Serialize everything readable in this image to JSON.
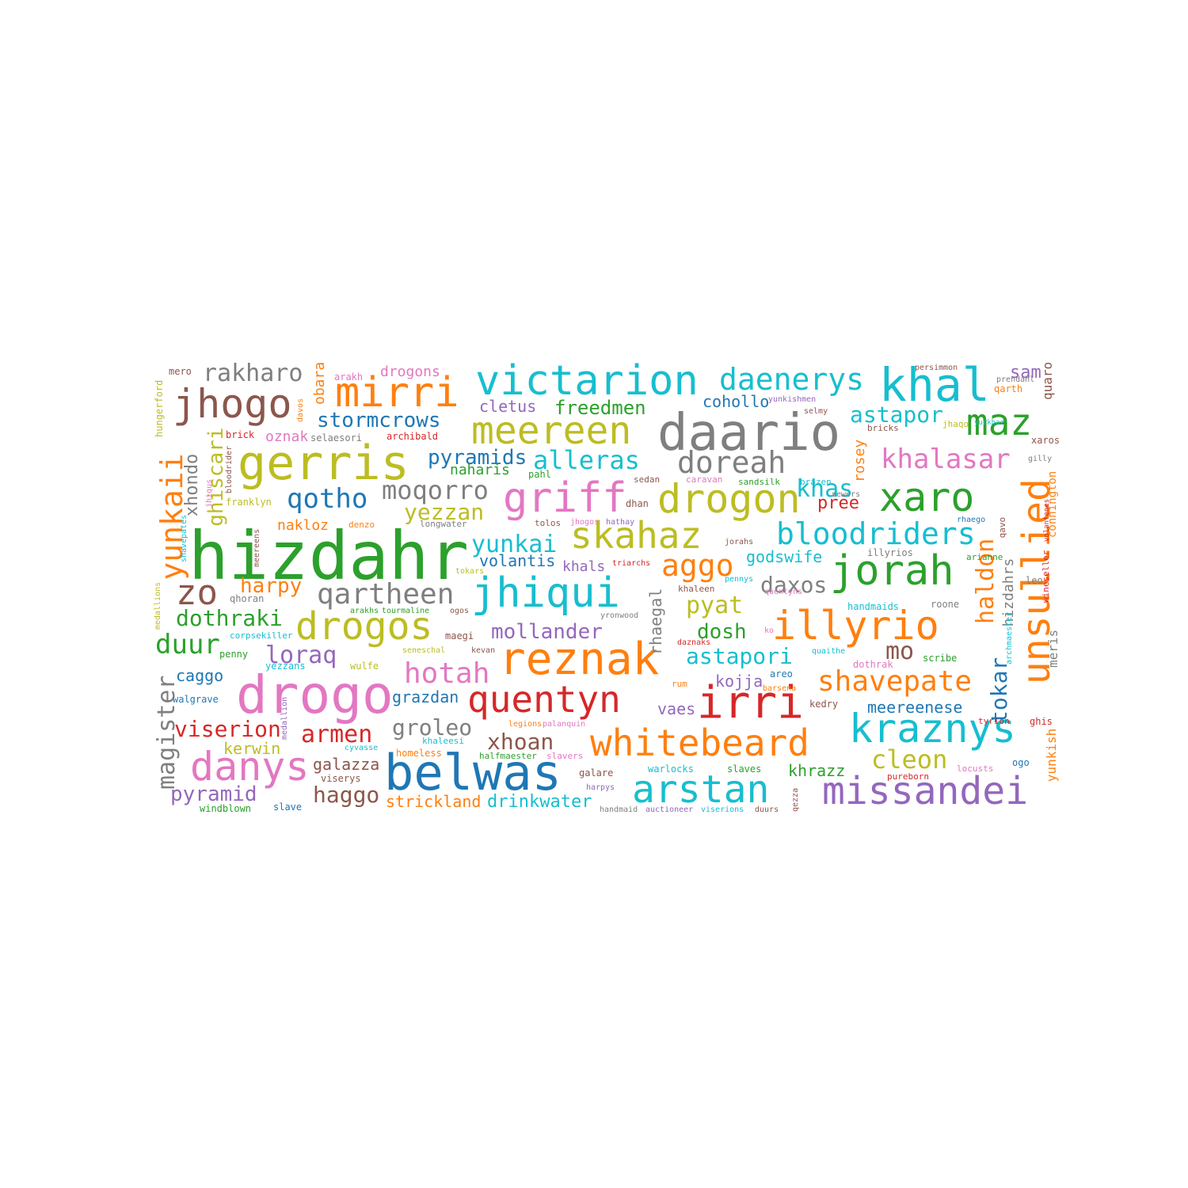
{
  "word_cloud": {
    "palette": {
      "blue": "#1f77b4",
      "orange": "#ff7f0e",
      "green": "#2ca02c",
      "red": "#d62728",
      "purple": "#9467bd",
      "brown": "#8c564b",
      "pink": "#e377c2",
      "gray": "#7f7f7f",
      "olive": "#bcbd22",
      "cyan": "#17becf"
    },
    "words": [
      {
        "text": "hizdahr",
        "color": "green"
      },
      {
        "text": "daario",
        "color": "gray"
      },
      {
        "text": "drogo",
        "color": "pink"
      },
      {
        "text": "belwas",
        "color": "blue"
      },
      {
        "text": "gerris",
        "color": "olive"
      },
      {
        "text": "victarion",
        "color": "cyan"
      },
      {
        "text": "meereen",
        "color": "olive"
      },
      {
        "text": "griff",
        "color": "pink"
      },
      {
        "text": "drogon",
        "color": "olive"
      },
      {
        "text": "reznak",
        "color": "orange"
      },
      {
        "text": "jhiqui",
        "color": "cyan"
      },
      {
        "text": "khal",
        "color": "cyan"
      },
      {
        "text": "unsullied",
        "color": "orange"
      },
      {
        "text": "jorah",
        "color": "green"
      },
      {
        "text": "illyrio",
        "color": "orange"
      },
      {
        "text": "quentyn",
        "color": "red"
      },
      {
        "text": "irri",
        "color": "red"
      },
      {
        "text": "whitebeard",
        "color": "orange"
      },
      {
        "text": "arstan",
        "color": "cyan"
      },
      {
        "text": "missandei",
        "color": "purple"
      },
      {
        "text": "kraznys",
        "color": "cyan"
      },
      {
        "text": "drogos",
        "color": "olive"
      },
      {
        "text": "danys",
        "color": "pink"
      },
      {
        "text": "xaro",
        "color": "green"
      },
      {
        "text": "skahaz",
        "color": "olive"
      },
      {
        "text": "mirri",
        "color": "orange"
      },
      {
        "text": "jhogo",
        "color": "brown"
      },
      {
        "text": "maz",
        "color": "green"
      },
      {
        "text": "daenerys",
        "color": "cyan"
      },
      {
        "text": "doreah",
        "color": "gray"
      },
      {
        "text": "zo",
        "color": "brown"
      },
      {
        "text": "bloodriders",
        "color": "cyan"
      },
      {
        "text": "yunkaii",
        "color": "orange"
      },
      {
        "text": "qartheen",
        "color": "gray"
      },
      {
        "text": "khalasar",
        "color": "pink"
      },
      {
        "text": "shavepate",
        "color": "orange"
      },
      {
        "text": "hotah",
        "color": "pink"
      },
      {
        "text": "qotho",
        "color": "blue"
      },
      {
        "text": "aggo",
        "color": "orange"
      },
      {
        "text": "rakharo",
        "color": "gray"
      },
      {
        "text": "alleras",
        "color": "cyan"
      },
      {
        "text": "moqorro",
        "color": "gray"
      },
      {
        "text": "magister",
        "color": "gray"
      },
      {
        "text": "yunkai",
        "color": "cyan"
      },
      {
        "text": "duur",
        "color": "green"
      },
      {
        "text": "astapor",
        "color": "cyan"
      },
      {
        "text": "astapori",
        "color": "cyan"
      },
      {
        "text": "pyat",
        "color": "olive"
      },
      {
        "text": "dothraki",
        "color": "green"
      },
      {
        "text": "ghiscari",
        "color": "olive"
      },
      {
        "text": "stormcrows",
        "color": "blue"
      },
      {
        "text": "pyramids",
        "color": "blue"
      },
      {
        "text": "mollander",
        "color": "purple"
      },
      {
        "text": "yezzan",
        "color": "olive"
      },
      {
        "text": "viserion",
        "color": "red"
      },
      {
        "text": "armen",
        "color": "red"
      },
      {
        "text": "groleo",
        "color": "gray"
      },
      {
        "text": "xhoan",
        "color": "brown"
      },
      {
        "text": "cleon",
        "color": "olive"
      },
      {
        "text": "haldon",
        "color": "orange"
      },
      {
        "text": "tokar",
        "color": "blue"
      },
      {
        "text": "loraq",
        "color": "purple"
      },
      {
        "text": "mo",
        "color": "brown"
      },
      {
        "text": "daxos",
        "color": "gray"
      },
      {
        "text": "harpy",
        "color": "orange"
      },
      {
        "text": "pyramid",
        "color": "purple"
      },
      {
        "text": "haggo",
        "color": "brown"
      },
      {
        "text": "xhondo",
        "color": "gray"
      },
      {
        "text": "khas",
        "color": "cyan"
      },
      {
        "text": "dosh",
        "color": "green"
      },
      {
        "text": "freedmen",
        "color": "green"
      },
      {
        "text": "sam",
        "color": "purple"
      },
      {
        "text": "pree",
        "color": "red"
      },
      {
        "text": "hizdahrs",
        "color": "gray"
      },
      {
        "text": "rosey",
        "color": "orange"
      },
      {
        "text": "drinkwater",
        "color": "cyan"
      },
      {
        "text": "strickland",
        "color": "orange"
      },
      {
        "text": "galazza",
        "color": "brown"
      },
      {
        "text": "grazdan",
        "color": "blue"
      },
      {
        "text": "meereenese",
        "color": "blue"
      },
      {
        "text": "kojja",
        "color": "purple"
      },
      {
        "text": "volantis",
        "color": "blue"
      },
      {
        "text": "khals",
        "color": "purple"
      },
      {
        "text": "rhaegal",
        "color": "gray"
      },
      {
        "text": "godswife",
        "color": "cyan"
      },
      {
        "text": "cohollo",
        "color": "blue"
      },
      {
        "text": "caggo",
        "color": "blue"
      },
      {
        "text": "kerwin",
        "color": "olive"
      },
      {
        "text": "khrazz",
        "color": "green"
      },
      {
        "text": "vaes",
        "color": "purple"
      },
      {
        "text": "cletus",
        "color": "purple"
      },
      {
        "text": "obara",
        "color": "orange"
      },
      {
        "text": "naharis",
        "color": "green"
      },
      {
        "text": "nakloz",
        "color": "orange"
      },
      {
        "text": "oznak",
        "color": "pink"
      },
      {
        "text": "meris",
        "color": "gray"
      },
      {
        "text": "quaro",
        "color": "brown"
      },
      {
        "text": "connington",
        "color": "orange"
      },
      {
        "text": "yunkish",
        "color": "orange"
      },
      {
        "text": "drogons",
        "color": "pink"
      },
      {
        "text": "mero",
        "color": "brown"
      },
      {
        "text": "arakh",
        "color": "pink"
      },
      {
        "text": "hungerford",
        "color": "olive"
      },
      {
        "text": "davos",
        "color": "orange"
      },
      {
        "text": "selaesori",
        "color": "gray"
      },
      {
        "text": "archibald",
        "color": "red"
      },
      {
        "text": "brick",
        "color": "red"
      },
      {
        "text": "jhiqus",
        "color": "pink"
      },
      {
        "text": "bloodrider",
        "color": "brown"
      },
      {
        "text": "franklyn",
        "color": "olive"
      },
      {
        "text": "shavepates",
        "color": "cyan"
      },
      {
        "text": "meereens",
        "color": "brown"
      },
      {
        "text": "medallions",
        "color": "olive"
      },
      {
        "text": "qhoran",
        "color": "gray"
      },
      {
        "text": "corpsekiller",
        "color": "cyan"
      },
      {
        "text": "penny",
        "color": "green"
      },
      {
        "text": "walgrave",
        "color": "blue"
      },
      {
        "text": "medallion",
        "color": "purple"
      },
      {
        "text": "windblown",
        "color": "green"
      },
      {
        "text": "slave",
        "color": "blue"
      },
      {
        "text": "viserys",
        "color": "brown"
      },
      {
        "text": "homeless",
        "color": "orange"
      },
      {
        "text": "cyvasse",
        "color": "cyan"
      },
      {
        "text": "khaleesi",
        "color": "cyan"
      },
      {
        "text": "halfmaester",
        "color": "green"
      },
      {
        "text": "slavers",
        "color": "pink"
      },
      {
        "text": "harpys",
        "color": "purple"
      },
      {
        "text": "galare",
        "color": "brown"
      },
      {
        "text": "legions",
        "color": "orange"
      },
      {
        "text": "palanquin",
        "color": "pink"
      },
      {
        "text": "handmaid",
        "color": "gray"
      },
      {
        "text": "auctioneer",
        "color": "purple"
      },
      {
        "text": "viserions",
        "color": "cyan"
      },
      {
        "text": "duurs",
        "color": "brown"
      },
      {
        "text": "qezza",
        "color": "brown"
      },
      {
        "text": "warlocks",
        "color": "cyan"
      },
      {
        "text": "slaves",
        "color": "green"
      },
      {
        "text": "pureborn",
        "color": "red"
      },
      {
        "text": "locusts",
        "color": "pink"
      },
      {
        "text": "ogo",
        "color": "blue"
      },
      {
        "text": "ghis",
        "color": "red"
      },
      {
        "text": "archmaester",
        "color": "cyan"
      },
      {
        "text": "tyrion",
        "color": "red"
      },
      {
        "text": "kedry",
        "color": "brown"
      },
      {
        "text": "barsena",
        "color": "orange"
      },
      {
        "text": "areo",
        "color": "blue"
      },
      {
        "text": "dothrak",
        "color": "pink"
      },
      {
        "text": "quaithe",
        "color": "cyan"
      },
      {
        "text": "scribe",
        "color": "green"
      },
      {
        "text": "roone",
        "color": "gray"
      },
      {
        "text": "handmaids",
        "color": "cyan"
      },
      {
        "text": "leo",
        "color": "gray"
      },
      {
        "text": "wineseller",
        "color": "red"
      },
      {
        "text": "volantenes",
        "color": "red"
      },
      {
        "text": "arianne",
        "color": "green"
      },
      {
        "text": "illyrios",
        "color": "gray"
      },
      {
        "text": "rhaego",
        "color": "blue"
      },
      {
        "text": "qavo",
        "color": "brown"
      },
      {
        "text": "gilly",
        "color": "gray"
      },
      {
        "text": "xaros",
        "color": "brown"
      },
      {
        "text": "yurkhaz",
        "color": "cyan"
      },
      {
        "text": "prendahl",
        "color": "gray"
      },
      {
        "text": "qarth",
        "color": "orange"
      },
      {
        "text": "persimmon",
        "color": "brown"
      },
      {
        "text": "jhaqo",
        "color": "olive"
      },
      {
        "text": "bricks",
        "color": "brown"
      },
      {
        "text": "selmy",
        "color": "brown"
      },
      {
        "text": "yunkishmen",
        "color": "purple"
      },
      {
        "text": "sewers",
        "color": "gray"
      },
      {
        "text": "brazen",
        "color": "cyan"
      },
      {
        "text": "sandsilk",
        "color": "green"
      },
      {
        "text": "caravan",
        "color": "pink"
      },
      {
        "text": "sedan",
        "color": "brown"
      },
      {
        "text": "pahl",
        "color": "green"
      },
      {
        "text": "dhan",
        "color": "brown"
      },
      {
        "text": "tolos",
        "color": "brown"
      },
      {
        "text": "jhogos",
        "color": "pink"
      },
      {
        "text": "hathay",
        "color": "purple"
      },
      {
        "text": "jorahs",
        "color": "brown"
      },
      {
        "text": "triarchs",
        "color": "red"
      },
      {
        "text": "khaleen",
        "color": "brown"
      },
      {
        "text": "pennys",
        "color": "cyan"
      },
      {
        "text": "quentyns",
        "color": "pink"
      },
      {
        "text": "yronwood",
        "color": "gray"
      },
      {
        "text": "ko",
        "color": "pink"
      },
      {
        "text": "daznaks",
        "color": "red"
      },
      {
        "text": "rum",
        "color": "orange"
      },
      {
        "text": "longwater",
        "color": "gray"
      },
      {
        "text": "denzo",
        "color": "orange"
      },
      {
        "text": "tokars",
        "color": "olive"
      },
      {
        "text": "arakhs",
        "color": "green"
      },
      {
        "text": "tourmaline",
        "color": "green"
      },
      {
        "text": "ogos",
        "color": "brown"
      },
      {
        "text": "maegi",
        "color": "brown"
      },
      {
        "text": "seneschal",
        "color": "olive"
      },
      {
        "text": "kevan",
        "color": "brown"
      },
      {
        "text": "wulfe",
        "color": "olive"
      },
      {
        "text": "yezzans",
        "color": "cyan"
      }
    ]
  }
}
